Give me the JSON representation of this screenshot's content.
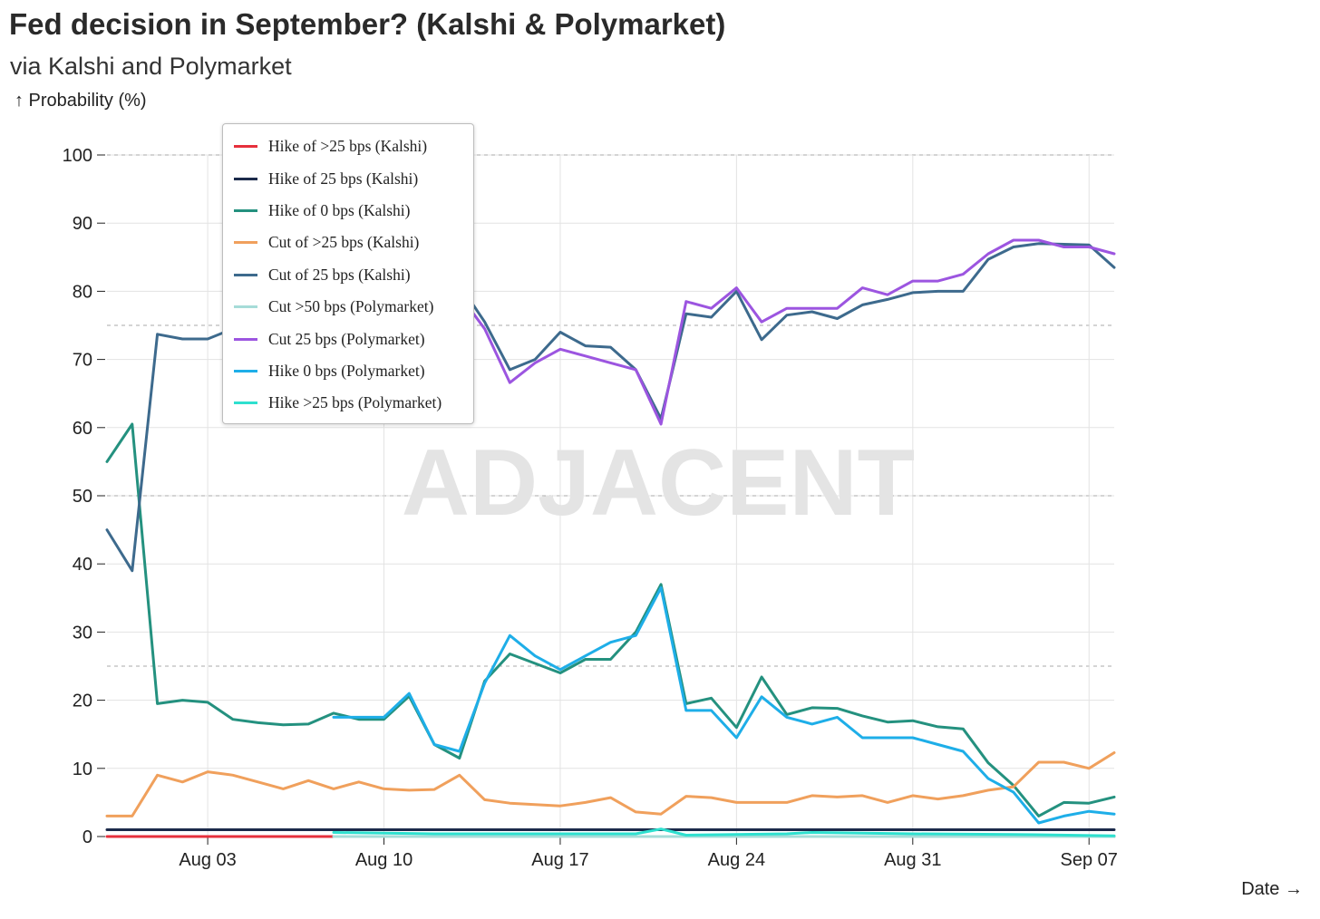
{
  "title": "Fed decision in September? (Kalshi & Polymarket)",
  "subtitle": "via Kalshi and Polymarket",
  "watermark": "ADJACENT",
  "chart_data": {
    "type": "line",
    "title": "Fed decision in September? (Kalshi & Polymarket)",
    "subtitle": "via Kalshi and Polymarket",
    "ylabel": "↑ Probability (%)",
    "xlabel": "Date →",
    "ylim": [
      0,
      100
    ],
    "yticks": [
      0,
      10,
      20,
      30,
      40,
      50,
      60,
      70,
      80,
      90,
      100
    ],
    "xlim": [
      "2023-07-30",
      "2023-09-08"
    ],
    "xticks": [
      {
        "date": "2023-08-03",
        "label": "Aug 03"
      },
      {
        "date": "2023-08-10",
        "label": "Aug 10"
      },
      {
        "date": "2023-08-17",
        "label": "Aug 17"
      },
      {
        "date": "2023-08-24",
        "label": "Aug 24"
      },
      {
        "date": "2023-08-31",
        "label": "Aug 31"
      },
      {
        "date": "2023-09-07",
        "label": "Sep 07"
      }
    ],
    "reference_lines": [
      25,
      50,
      75,
      100
    ],
    "grid": true,
    "legend_position": "top-left",
    "series": [
      {
        "name": "Hike of >25 bps (Kalshi)",
        "color": "#e6303c",
        "x": [
          "2023-07-30",
          "2023-09-08"
        ],
        "y": [
          0,
          0
        ]
      },
      {
        "name": "Hike of 25 bps (Kalshi)",
        "color": "#1b2a4a",
        "x": [
          "2023-07-30",
          "2023-09-08"
        ],
        "y": [
          1,
          1
        ]
      },
      {
        "name": "Hike of 0 bps (Kalshi)",
        "color": "#24917f",
        "x": [
          "2023-07-30",
          "2023-07-31",
          "2023-08-01",
          "2023-08-02",
          "2023-08-03",
          "2023-08-04",
          "2023-08-05",
          "2023-08-06",
          "2023-08-07",
          "2023-08-08",
          "2023-08-09",
          "2023-08-10",
          "2023-08-11",
          "2023-08-12",
          "2023-08-13",
          "2023-08-14",
          "2023-08-15",
          "2023-08-16",
          "2023-08-17",
          "2023-08-18",
          "2023-08-19",
          "2023-08-20",
          "2023-08-21",
          "2023-08-22",
          "2023-08-23",
          "2023-08-24",
          "2023-08-25",
          "2023-08-26",
          "2023-08-27",
          "2023-08-28",
          "2023-08-29",
          "2023-08-30",
          "2023-08-31",
          "2023-09-01",
          "2023-09-02",
          "2023-09-03",
          "2023-09-04",
          "2023-09-05",
          "2023-09-06",
          "2023-09-07",
          "2023-09-08"
        ],
        "y": [
          55,
          60.5,
          19.5,
          20,
          19.7,
          17.2,
          16.7,
          16.4,
          16.5,
          18.1,
          17.2,
          17.2,
          20.6,
          13.5,
          11.5,
          22.8,
          26.8,
          25.4,
          24,
          26,
          26,
          30,
          37,
          19.5,
          20.3,
          16,
          23.4,
          17.9,
          18.9,
          18.8,
          17.7,
          16.8,
          17,
          16.1,
          15.8,
          10.8,
          7.5,
          3,
          5,
          4.9,
          5.8
        ]
      },
      {
        "name": "Cut of >25 bps (Kalshi)",
        "color": "#f0a05c",
        "x": [
          "2023-07-30",
          "2023-07-31",
          "2023-08-01",
          "2023-08-02",
          "2023-08-03",
          "2023-08-04",
          "2023-08-05",
          "2023-08-06",
          "2023-08-07",
          "2023-08-08",
          "2023-08-09",
          "2023-08-10",
          "2023-08-11",
          "2023-08-12",
          "2023-08-13",
          "2023-08-14",
          "2023-08-15",
          "2023-08-16",
          "2023-08-17",
          "2023-08-18",
          "2023-08-19",
          "2023-08-20",
          "2023-08-21",
          "2023-08-22",
          "2023-08-23",
          "2023-08-24",
          "2023-08-25",
          "2023-08-26",
          "2023-08-27",
          "2023-08-28",
          "2023-08-29",
          "2023-08-30",
          "2023-08-31",
          "2023-09-01",
          "2023-09-02",
          "2023-09-03",
          "2023-09-04",
          "2023-09-05",
          "2023-09-06",
          "2023-09-07",
          "2023-09-08"
        ],
        "y": [
          3,
          3,
          9,
          8,
          9.5,
          9,
          8,
          7,
          8.2,
          7,
          8,
          7,
          6.8,
          6.9,
          9,
          5.4,
          4.9,
          4.7,
          4.5,
          5,
          5.7,
          3.6,
          3.3,
          5.9,
          5.7,
          5,
          5,
          5,
          6,
          5.8,
          6,
          5,
          6,
          5.5,
          6,
          6.8,
          7.3,
          10.9,
          10.9,
          10,
          12.3
        ]
      },
      {
        "name": "Cut of 25 bps (Kalshi)",
        "color": "#3d6a8d",
        "x": [
          "2023-07-30",
          "2023-07-31",
          "2023-08-01",
          "2023-08-02",
          "2023-08-03",
          "2023-08-04",
          "2023-08-05",
          "2023-08-06",
          "2023-08-07",
          "2023-08-08",
          "2023-08-09",
          "2023-08-10",
          "2023-08-11",
          "2023-08-12",
          "2023-08-13",
          "2023-08-14",
          "2023-08-15",
          "2023-08-16",
          "2023-08-17",
          "2023-08-18",
          "2023-08-19",
          "2023-08-20",
          "2023-08-21",
          "2023-08-22",
          "2023-08-23",
          "2023-08-24",
          "2023-08-25",
          "2023-08-26",
          "2023-08-27",
          "2023-08-28",
          "2023-08-29",
          "2023-08-30",
          "2023-08-31",
          "2023-09-01",
          "2023-09-02",
          "2023-09-03",
          "2023-09-04",
          "2023-09-05",
          "2023-09-06",
          "2023-09-07",
          "2023-09-08"
        ],
        "y": [
          45,
          39,
          73.7,
          73,
          73,
          74.5,
          75.8,
          78.2,
          77.5,
          76.5,
          76.8,
          76.8,
          74.1,
          81,
          81,
          75.5,
          68.5,
          70,
          74,
          72,
          71.8,
          68.5,
          61.3,
          76.7,
          76.2,
          80,
          72.9,
          76.5,
          77,
          76,
          78,
          78.8,
          79.8,
          80,
          80,
          84.7,
          86.5,
          87,
          86.9,
          86.8,
          83.5
        ]
      },
      {
        "name": "Cut >50 bps (Polymarket)",
        "color": "#a6dcd8",
        "x": [
          "2023-08-08",
          "2023-09-08"
        ],
        "y": [
          0,
          0
        ]
      },
      {
        "name": "Cut 25 bps (Polymarket)",
        "color": "#9c55e0",
        "x": [
          "2023-08-08",
          "2023-08-09",
          "2023-08-10",
          "2023-08-11",
          "2023-08-12",
          "2023-08-13",
          "2023-08-14",
          "2023-08-15",
          "2023-08-16",
          "2023-08-17",
          "2023-08-18",
          "2023-08-19",
          "2023-08-20",
          "2023-08-21",
          "2023-08-22",
          "2023-08-23",
          "2023-08-24",
          "2023-08-25",
          "2023-08-26",
          "2023-08-27",
          "2023-08-28",
          "2023-08-29",
          "2023-08-30",
          "2023-08-31",
          "2023-09-01",
          "2023-09-02",
          "2023-09-03",
          "2023-09-04",
          "2023-09-05",
          "2023-09-06",
          "2023-09-07",
          "2023-09-08"
        ],
        "y": [
          75.8,
          75.8,
          75.5,
          73.5,
          80,
          79.5,
          74.5,
          66.6,
          69.5,
          71.5,
          70.5,
          69.5,
          68.5,
          60.5,
          78.5,
          77.5,
          80.5,
          75.5,
          77.5,
          77.5,
          77.5,
          80.5,
          79.5,
          81.5,
          81.5,
          82.5,
          85.5,
          87.5,
          87.5,
          86.5,
          86.5,
          85.5
        ]
      },
      {
        "name": "Hike 0 bps (Polymarket)",
        "color": "#1eaee8",
        "x": [
          "2023-08-08",
          "2023-08-09",
          "2023-08-10",
          "2023-08-11",
          "2023-08-12",
          "2023-08-13",
          "2023-08-14",
          "2023-08-15",
          "2023-08-16",
          "2023-08-17",
          "2023-08-18",
          "2023-08-19",
          "2023-08-20",
          "2023-08-21",
          "2023-08-22",
          "2023-08-23",
          "2023-08-24",
          "2023-08-25",
          "2023-08-26",
          "2023-08-27",
          "2023-08-28",
          "2023-08-29",
          "2023-08-30",
          "2023-08-31",
          "2023-09-01",
          "2023-09-02",
          "2023-09-03",
          "2023-09-04",
          "2023-09-05",
          "2023-09-06",
          "2023-09-07",
          "2023-09-08"
        ],
        "y": [
          17.5,
          17.5,
          17.5,
          21,
          13.5,
          12.5,
          22.5,
          29.5,
          26.5,
          24.5,
          26.5,
          28.5,
          29.5,
          36.5,
          18.5,
          18.5,
          14.5,
          20.5,
          17.5,
          16.5,
          17.5,
          14.5,
          14.5,
          14.5,
          13.5,
          12.5,
          8.5,
          6.5,
          2,
          3,
          3.7,
          3.3
        ]
      },
      {
        "name": "Hike >25 bps (Polymarket)",
        "color": "#2ee0cf",
        "x": [
          "2023-08-08",
          "2023-08-12",
          "2023-08-16",
          "2023-08-20",
          "2023-08-21",
          "2023-08-22",
          "2023-08-26",
          "2023-08-27",
          "2023-08-31",
          "2023-09-04",
          "2023-09-08"
        ],
        "y": [
          0.6,
          0.4,
          0.4,
          0.4,
          1.1,
          0.2,
          0.4,
          0.6,
          0.4,
          0.3,
          0.1
        ]
      }
    ]
  }
}
